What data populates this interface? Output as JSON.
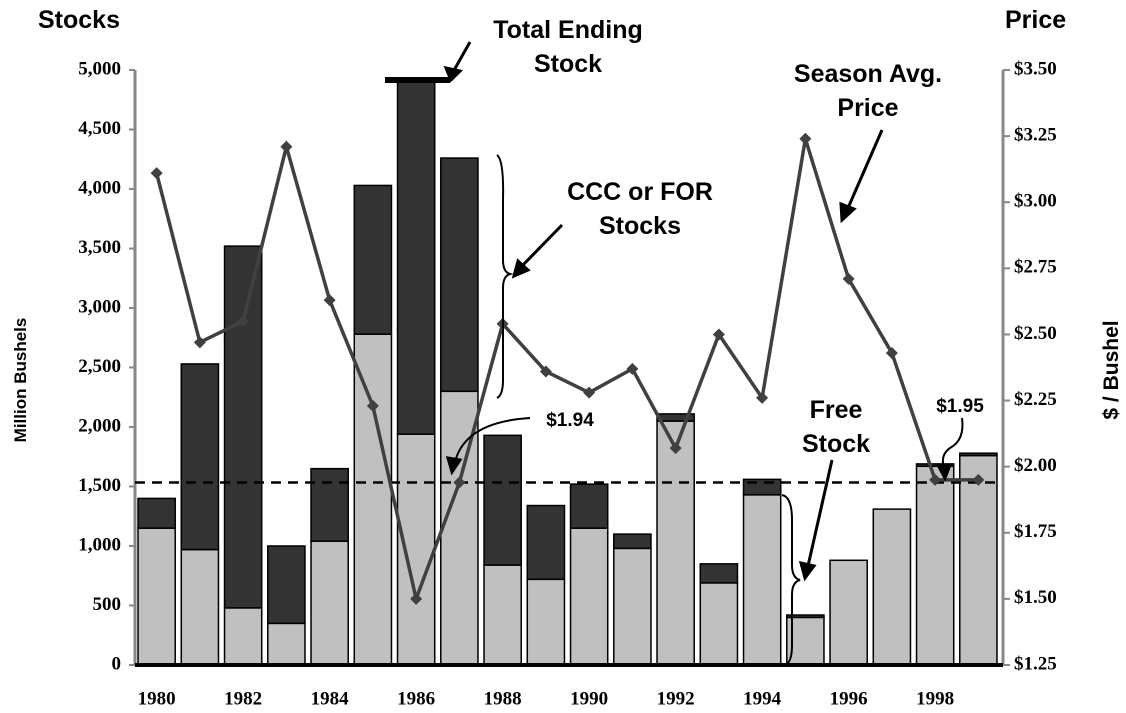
{
  "chart_data": {
    "type": "bar",
    "stacked": true,
    "left_title": "Stocks",
    "right_title": "Price",
    "y_label": "Million Bushels",
    "y2_label": "$ / Bushel",
    "categories": [
      "1980",
      null,
      "1982",
      null,
      "1984",
      null,
      "1986",
      null,
      "1988",
      null,
      "1990",
      null,
      "1992",
      null,
      "1994",
      null,
      "1996",
      null,
      "1998",
      null
    ],
    "series": [
      {
        "name": "Free Stock",
        "type": "bar",
        "color": "#c0c0c0",
        "values": [
          1150,
          970,
          480,
          350,
          1040,
          2780,
          1940,
          2300,
          840,
          720,
          1150,
          980,
          2050,
          690,
          1430,
          400,
          880,
          1310,
          1670,
          1760
        ]
      },
      {
        "name": "CCC or FOR Stocks",
        "type": "bar",
        "color": "#333333",
        "values": [
          250,
          1560,
          3040,
          650,
          610,
          1250,
          2960,
          1960,
          1090,
          620,
          370,
          120,
          60,
          160,
          130,
          20,
          0,
          0,
          20,
          20
        ]
      },
      {
        "name": "Season Avg. Price",
        "type": "line",
        "axis": "y2",
        "color": "#404040",
        "values": [
          3.11,
          2.47,
          2.55,
          3.21,
          2.63,
          2.23,
          1.5,
          1.94,
          2.54,
          2.36,
          2.28,
          2.37,
          2.07,
          2.5,
          2.26,
          3.24,
          2.71,
          2.43,
          1.95,
          1.95
        ]
      }
    ],
    "reference_line": {
      "value": 1.94,
      "axis": "y2"
    },
    "ylim": [
      0,
      5000
    ],
    "yticks": [
      0,
      500,
      {
        "value": 1000,
        "label": "1,000"
      },
      {
        "value": 1500,
        "label": "1,500"
      },
      {
        "value": 2000,
        "label": "2,000"
      },
      {
        "value": 2500,
        "label": "2,500"
      },
      {
        "value": 3000,
        "label": "3,000"
      },
      {
        "value": 3500,
        "label": "3,500"
      },
      {
        "value": 4000,
        "label": "4,000"
      },
      {
        "value": 4500,
        "label": "4,500"
      },
      {
        "value": 5000,
        "label": "5,000"
      }
    ],
    "y2lim": [
      1.25,
      3.5
    ],
    "y2ticks": [
      {
        "value": 1.25,
        "label": "$1.25"
      },
      {
        "value": 1.5,
        "label": "$1.50"
      },
      {
        "value": 1.75,
        "label": "$1.75"
      },
      {
        "value": 2.0,
        "label": "$2.00"
      },
      {
        "value": 2.25,
        "label": "$2.25"
      },
      {
        "value": 2.5,
        "label": "$2.50"
      },
      {
        "value": 2.75,
        "label": "$2.75"
      },
      {
        "value": 3.0,
        "label": "$3.00"
      },
      {
        "value": 3.25,
        "label": "$3.25"
      },
      {
        "value": 3.5,
        "label": "$3.50"
      }
    ],
    "annotations": [
      {
        "lines": [
          "Total Ending",
          "Stock"
        ]
      },
      {
        "lines": [
          "CCC or FOR",
          "Stocks"
        ]
      },
      {
        "lines": [
          "Season Avg.",
          "Price"
        ]
      },
      {
        "lines": [
          "Free",
          "Stock"
        ]
      },
      {
        "lines": [
          "$1.94"
        ]
      },
      {
        "lines": [
          "$1.95"
        ]
      }
    ]
  }
}
